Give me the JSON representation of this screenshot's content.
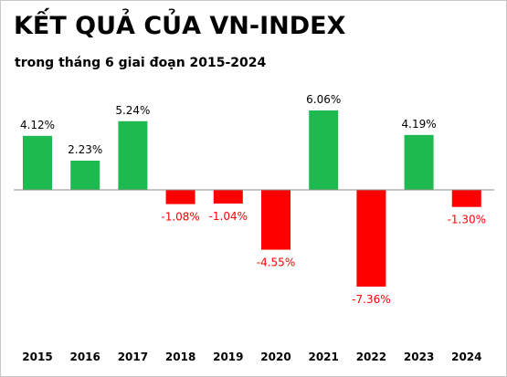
{
  "chart_data": {
    "type": "bar",
    "title": "KẾT QUẢ CỦA VN-INDEX",
    "subtitle": "trong tháng 6 giai đoạn 2015-2024",
    "categories": [
      "2015",
      "2016",
      "2017",
      "2018",
      "2019",
      "2020",
      "2021",
      "2022",
      "2023",
      "2024"
    ],
    "values": [
      4.12,
      2.23,
      5.24,
      -1.08,
      -1.04,
      -4.55,
      6.06,
      -7.36,
      4.19,
      -1.3
    ],
    "data_labels": [
      "4.12%",
      "2.23%",
      "5.24%",
      "-1.08%",
      "-1.04%",
      "-4.55%",
      "6.06%",
      "-7.36%",
      "4.19%",
      "-1.30%"
    ],
    "ylim": [
      -7.36,
      6.06
    ],
    "grid": false,
    "colors": {
      "positive": "#1fba4f",
      "negative": "#ff0000",
      "positive_label": "#000000",
      "negative_label": "#ff0000"
    }
  }
}
